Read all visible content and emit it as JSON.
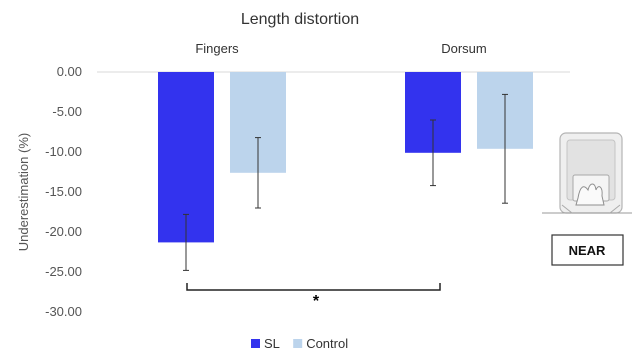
{
  "chart_data": {
    "type": "bar",
    "title": "Length distortion",
    "ylabel": "Underestimation (%)",
    "xlabel": "",
    "categories": [
      "Fingers",
      "Dorsum"
    ],
    "ylim": [
      -30,
      0
    ],
    "yticks": [
      "0.00",
      "-5.00",
      "-10.00",
      "-15.00",
      "-20.00",
      "-25.00",
      "-30.00"
    ],
    "series": [
      {
        "name": "SL",
        "color": "#3333ee",
        "values": [
          -21.3,
          -10.1
        ],
        "error": [
          3.5,
          4.1
        ]
      },
      {
        "name": "Control",
        "color": "#bcd4ec",
        "values": [
          -12.6,
          -9.6
        ],
        "error": [
          4.4,
          6.8
        ]
      }
    ],
    "legend_position": "bottom",
    "annotations": {
      "significance": {
        "between": [
          0,
          2
        ],
        "label": "*"
      },
      "condition_label": "NEAR",
      "inset_icon": "hand-on-box-illustration"
    }
  }
}
